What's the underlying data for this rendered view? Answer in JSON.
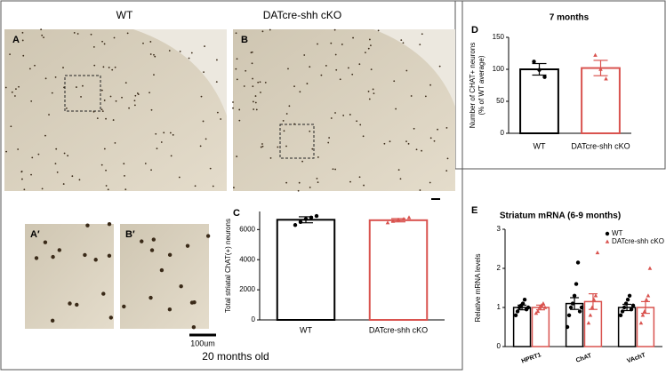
{
  "figure": {
    "group_labels": [
      "WT",
      "DATcre-shh cKO"
    ],
    "panels": [
      "A",
      "B",
      "A′",
      "B′",
      "C",
      "D",
      "E"
    ],
    "scale_label": "100um",
    "caption": "20 months old"
  },
  "chart_data": [
    {
      "type": "bar",
      "ylabel": "Total striatal ChAT(+) neurons",
      "categories": [
        "WT",
        "DATcre-shh cKO"
      ],
      "values": [
        6650,
        6620
      ],
      "errors": [
        200,
        110
      ],
      "colors": [
        "#000000",
        "#d9534f"
      ],
      "points": [
        [
          6300,
          6500,
          6700,
          6800,
          6900
        ],
        [
          6450,
          6550,
          6650,
          6700,
          6800
        ]
      ],
      "ylim": [
        0,
        7200
      ],
      "yticks": [
        0,
        2000,
        4000,
        6000
      ]
    },
    {
      "type": "bar",
      "title": "7 months",
      "ylabel": [
        "Number of CHAT+ neurons",
        "(% of WT average)"
      ],
      "categories": [
        "WT",
        "DATcre-shh cKO"
      ],
      "values": [
        100,
        102
      ],
      "errors": [
        9,
        12
      ],
      "colors": [
        "#000000",
        "#d9534f"
      ],
      "points": [
        [
          112,
          99,
          88
        ],
        [
          122,
          100,
          85
        ]
      ],
      "ylim": [
        0,
        150
      ],
      "yticks": [
        0,
        50,
        100,
        150
      ]
    },
    {
      "type": "grouped-bar",
      "title": "Striatum mRNA (6-9 months)",
      "ylabel": "Relative mRNA levels",
      "categories": [
        "HPRT1",
        "ChAT",
        "VAchT"
      ],
      "series": [
        {
          "name": "WT",
          "color": "#000000",
          "values": [
            1.0,
            1.1,
            1.0
          ],
          "errors": [
            0.06,
            0.15,
            0.08
          ],
          "points": [
            [
              0.8,
              0.9,
              1.0,
              1.05,
              1.1,
              1.2,
              0.95,
              1.0
            ],
            [
              0.5,
              0.8,
              1.0,
              1.1,
              1.3,
              1.6,
              2.15,
              0.9,
              1.0
            ],
            [
              0.8,
              0.9,
              1.0,
              1.1,
              1.2,
              1.3,
              0.95,
              1.05
            ]
          ]
        },
        {
          "name": "DATcre-shh cKO",
          "color": "#d9534f",
          "values": [
            1.0,
            1.15,
            1.0
          ],
          "errors": [
            0.06,
            0.2,
            0.15
          ],
          "points": [
            [
              0.85,
              0.9,
              1.0,
              1.05,
              1.1,
              1.0
            ],
            [
              0.6,
              0.8,
              1.0,
              1.2,
              1.3,
              2.4
            ],
            [
              0.6,
              0.8,
              0.9,
              1.2,
              1.3,
              2.0
            ]
          ]
        }
      ],
      "ylim": [
        0,
        3
      ],
      "yticks": [
        0,
        1,
        2,
        3
      ],
      "legend": "top-right"
    }
  ]
}
